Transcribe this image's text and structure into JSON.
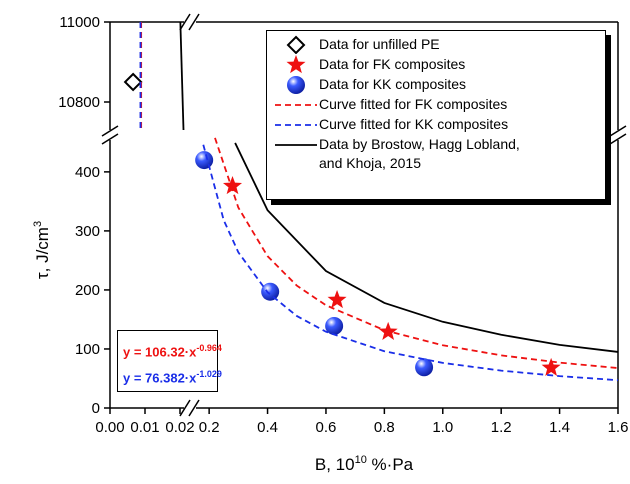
{
  "chart_data": {
    "type": "broken-axis-xy",
    "xlabel": {
      "text": "B, 10",
      "sup": "10",
      "after": " %·Pa"
    },
    "ylabel": {
      "text": "τ, J/cm",
      "sup": "3"
    },
    "xaxes": [
      {
        "xlim": [
          0,
          0.024
        ],
        "xticks": [
          {
            "value": 0,
            "label": "0.00"
          },
          0.01,
          0.02
        ]
      },
      {
        "xlim": [
          0.155,
          1.6
        ],
        "xticks": [
          0.2,
          0.4,
          0.6,
          0.8,
          {
            "value": 1,
            "label": "1.0"
          },
          1.2,
          1.4,
          1.6
        ]
      }
    ],
    "yaxes": [
      {
        "ylim": [
          0,
          454
        ],
        "yticks": [
          0,
          100,
          200,
          300,
          400
        ]
      },
      {
        "ylim": [
          10730,
          11000
        ],
        "yticks": [
          10800,
          11000
        ]
      }
    ],
    "series": [
      {
        "name": "Data for unfilled PE",
        "marker": "diamond",
        "color": "#000000",
        "xaxis": 0,
        "yaxis": 1,
        "x": [
          0.0066
        ],
        "values": [
          10850
        ]
      },
      {
        "name": "Data for FK composites",
        "marker": "star",
        "color": "#ee1111",
        "xaxis": 1,
        "yaxis": 0,
        "x": [
          0.28,
          0.638,
          0.813,
          1.371
        ],
        "values": [
          376,
          183,
          129,
          68
        ]
      },
      {
        "name": "Data for KK composites",
        "marker": "circle",
        "color": "#1a2ee8",
        "xaxis": 1,
        "yaxis": 0,
        "x": [
          0.183,
          0.409,
          0.628,
          0.936
        ],
        "values": [
          420,
          197,
          139,
          69
        ]
      },
      {
        "name": "Curve fitted for FK composites",
        "line": "dashed",
        "color": "#ee1111",
        "xaxis": 1,
        "yaxis": 0,
        "x": [
          0.22,
          0.3,
          0.4,
          0.5,
          0.6,
          0.8,
          1.0,
          1.2,
          1.4,
          1.6
        ],
        "values": [
          457.6,
          339.4,
          257.2,
          207.4,
          174.0,
          131.8,
          106.3,
          89.2,
          76.9,
          67.6
        ]
      },
      {
        "name": "Curve fitted for KK composites",
        "line": "dashed",
        "color": "#1a2ee8",
        "xaxis": 1,
        "yaxis": 0,
        "x": [
          0.18,
          0.25,
          0.3,
          0.4,
          0.5,
          0.6,
          0.8,
          1.0,
          1.2,
          1.4,
          1.6
        ],
        "values": [
          446.0,
          318.1,
          263.7,
          196.1,
          155.9,
          129.2,
          96.1,
          76.4,
          63.3,
          54.0,
          47.1
        ]
      },
      {
        "name": "Data by Brostow, Hagg Lobland, and Khoja, 2015",
        "line": "solid",
        "color": "#000000",
        "xaxis": 1,
        "yaxis": 0,
        "x": [
          0.289,
          0.4,
          0.6,
          0.8,
          1.0,
          1.2,
          1.4,
          1.6
        ],
        "values": [
          449,
          335,
          232,
          178,
          146,
          124,
          107,
          95
        ]
      },
      {
        "line": "dashed",
        "color": "#ee1111",
        "xaxis": 0,
        "yaxis": 1,
        "x": [
          0.0089,
          0.0089
        ],
        "values": [
          11000,
          10730
        ]
      },
      {
        "line": "dashed",
        "color": "#1a2ee8",
        "xaxis": 0,
        "yaxis": 1,
        "x": [
          0.0087,
          0.0087
        ],
        "values": [
          11000,
          10730
        ]
      },
      {
        "line": "solid",
        "color": "#000000",
        "xaxis": 0,
        "yaxis": 1,
        "x": [
          0.0201,
          0.021
        ],
        "values": [
          11000,
          10730
        ]
      }
    ],
    "fits": [
      {
        "text": "y = 106.32·x",
        "exponent": "-0.964",
        "color": "#ee1111"
      },
      {
        "text": "y = 76.382·x",
        "exponent": "-1.029",
        "color": "#1a2ee8"
      }
    ]
  }
}
